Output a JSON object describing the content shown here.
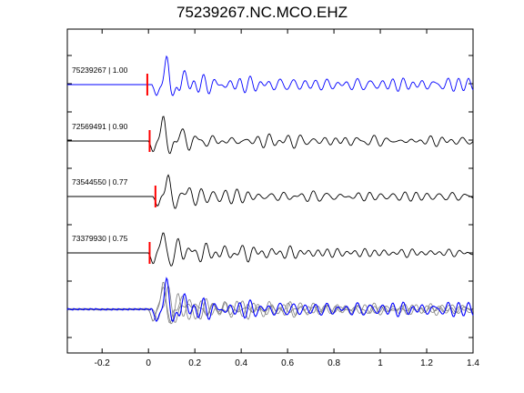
{
  "chart_data": {
    "type": "line",
    "title": "75239267.NC.MCO.EHZ",
    "xlabel": "",
    "ylabel": "",
    "xlim": [
      -0.35,
      1.4
    ],
    "x_ticks": [
      -0.2,
      0,
      0.2,
      0.4,
      0.6,
      0.8,
      1,
      1.2,
      1.4
    ],
    "x_tick_labels": [
      "-0.2",
      "0",
      "0.2",
      "0.4",
      "0.6",
      "0.8",
      "1",
      "1.2",
      "1.4"
    ],
    "grid": false,
    "colors": {
      "primary": "#0000ff",
      "secondary": "#000000",
      "overlay": "#808080",
      "pick": "#ff0000"
    },
    "traces": [
      {
        "label": "75239267 | 1.00",
        "color": "#0000ff",
        "pick_time": -0.005,
        "onset": 0.015,
        "amplitude": 1.0,
        "seed": 3
      },
      {
        "label": "72569491 | 0.90",
        "color": "#000000",
        "pick_time": 0.005,
        "onset": 0.0,
        "amplitude": 0.9,
        "seed": 7
      },
      {
        "label": "73544550 | 0.77",
        "color": "#000000",
        "pick_time": 0.03,
        "onset": 0.02,
        "amplitude": 0.85,
        "seed": 11
      },
      {
        "label": "73379930 | 0.75",
        "color": "#000000",
        "pick_time": 0.005,
        "onset": 0.0,
        "amplitude": 0.9,
        "seed": 17
      }
    ],
    "stack": {
      "description_free": true,
      "n_overlay": 4
    }
  }
}
